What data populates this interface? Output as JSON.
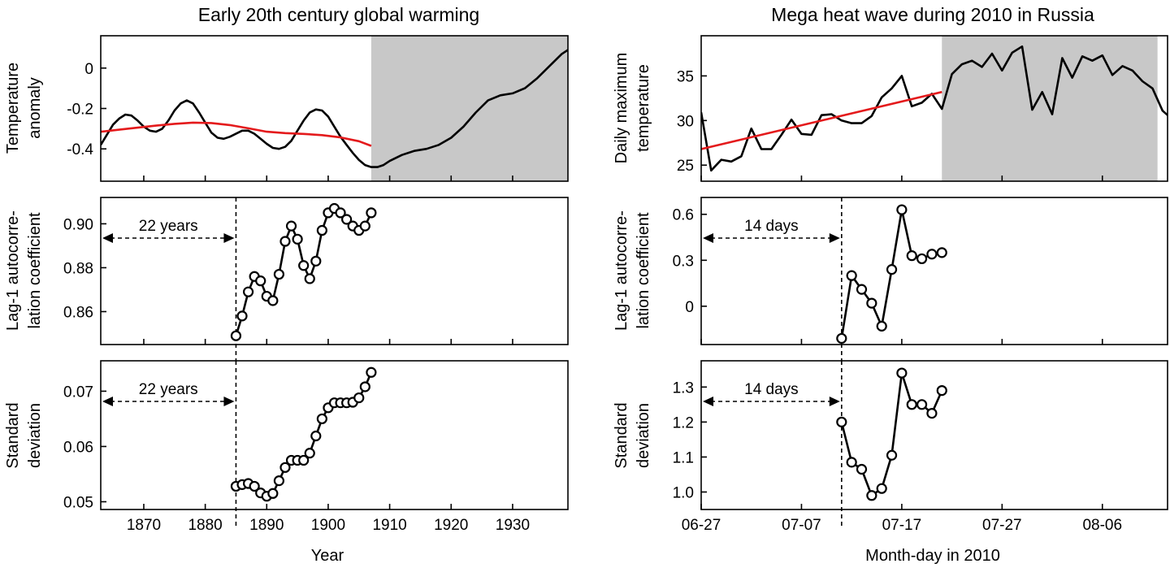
{
  "chart_data": [
    {
      "id": "lt",
      "type": "line",
      "title": "Early 20th century global warming",
      "ylabel": [
        "Temperature",
        "anomaly"
      ],
      "xlim": [
        1863,
        1939
      ],
      "ylim": [
        -0.56,
        0.16
      ],
      "yticks": [
        -0.4,
        -0.2,
        0
      ],
      "yticklabels": [
        "-0.4",
        "-0.2",
        "0"
      ],
      "xticks": [
        1870,
        1880,
        1890,
        1900,
        1910,
        1920,
        1930
      ],
      "shade": [
        1907,
        1939
      ],
      "series": [
        {
          "name": "temperature anomaly",
          "color": "#000000",
          "x": [
            1863,
            1864,
            1865,
            1866,
            1867,
            1868,
            1869,
            1870,
            1871,
            1872,
            1873,
            1874,
            1875,
            1876,
            1877,
            1878,
            1879,
            1880,
            1881,
            1882,
            1883,
            1884,
            1885,
            1886,
            1887,
            1888,
            1889,
            1890,
            1891,
            1892,
            1893,
            1894,
            1895,
            1896,
            1897,
            1898,
            1899,
            1900,
            1901,
            1902,
            1903,
            1904,
            1905,
            1906,
            1907,
            1908,
            1909,
            1910,
            1912,
            1914,
            1916,
            1918,
            1920,
            1922,
            1924,
            1926,
            1928,
            1930,
            1932,
            1934,
            1936,
            1938,
            1939
          ],
          "y": [
            -0.38,
            -0.33,
            -0.28,
            -0.25,
            -0.23,
            -0.235,
            -0.26,
            -0.29,
            -0.31,
            -0.315,
            -0.3,
            -0.26,
            -0.21,
            -0.175,
            -0.16,
            -0.175,
            -0.22,
            -0.27,
            -0.32,
            -0.345,
            -0.35,
            -0.34,
            -0.325,
            -0.31,
            -0.31,
            -0.325,
            -0.35,
            -0.375,
            -0.395,
            -0.4,
            -0.39,
            -0.36,
            -0.31,
            -0.26,
            -0.22,
            -0.205,
            -0.21,
            -0.24,
            -0.29,
            -0.34,
            -0.38,
            -0.42,
            -0.455,
            -0.48,
            -0.49,
            -0.49,
            -0.48,
            -0.46,
            -0.43,
            -0.41,
            -0.4,
            -0.38,
            -0.345,
            -0.29,
            -0.22,
            -0.16,
            -0.135,
            -0.125,
            -0.1,
            -0.05,
            0.01,
            0.07,
            0.09
          ]
        },
        {
          "name": "trend",
          "color": "#e41a1c",
          "x": [
            1863,
            1866,
            1869,
            1872,
            1875,
            1878,
            1881,
            1884,
            1887,
            1890,
            1893,
            1896,
            1899,
            1902,
            1905,
            1907
          ],
          "y": [
            -0.315,
            -0.305,
            -0.295,
            -0.285,
            -0.276,
            -0.27,
            -0.272,
            -0.282,
            -0.298,
            -0.315,
            -0.322,
            -0.326,
            -0.332,
            -0.343,
            -0.362,
            -0.385
          ]
        }
      ]
    },
    {
      "id": "lm",
      "type": "line",
      "ylabel": [
        "Lag-1 autocorre-",
        "lation coefficient"
      ],
      "xlim": [
        1863,
        1939
      ],
      "ylim": [
        0.845,
        0.912
      ],
      "yticks": [
        0.86,
        0.88,
        0.9
      ],
      "yticklabels": [
        "0.86",
        "0.88",
        "0.90"
      ],
      "xticks": [
        1870,
        1880,
        1890,
        1900,
        1910,
        1920,
        1930
      ],
      "vline": 1885,
      "annotation": "22 years",
      "series": [
        {
          "name": "lag-1 autocorrelation",
          "color": "#000000",
          "markers": true,
          "x": [
            1885,
            1886,
            1887,
            1888,
            1889,
            1890,
            1891,
            1892,
            1893,
            1894,
            1895,
            1896,
            1897,
            1898,
            1899,
            1900,
            1901,
            1902,
            1903,
            1904,
            1905,
            1906,
            1907
          ],
          "y": [
            0.849,
            0.858,
            0.869,
            0.876,
            0.874,
            0.867,
            0.865,
            0.877,
            0.892,
            0.899,
            0.893,
            0.881,
            0.875,
            0.883,
            0.897,
            0.905,
            0.907,
            0.905,
            0.902,
            0.899,
            0.897,
            0.899,
            0.905
          ]
        }
      ]
    },
    {
      "id": "lb",
      "type": "line",
      "xlabel": "Year",
      "ylabel": [
        "Standard",
        "deviation"
      ],
      "xlim": [
        1863,
        1939
      ],
      "ylim": [
        0.0486,
        0.0755
      ],
      "yticks": [
        0.05,
        0.06,
        0.07
      ],
      "yticklabels": [
        "0.05",
        "0.06",
        "0.07"
      ],
      "xticks": [
        1870,
        1880,
        1890,
        1900,
        1910,
        1920,
        1930
      ],
      "xticklabels": [
        "1870",
        "1880",
        "1890",
        "1900",
        "1910",
        "1920",
        "1930"
      ],
      "vline": 1885,
      "annotation": "22 years",
      "series": [
        {
          "name": "standard deviation",
          "color": "#000000",
          "markers": true,
          "x": [
            1885,
            1886,
            1887,
            1888,
            1889,
            1890,
            1891,
            1892,
            1893,
            1894,
            1895,
            1896,
            1897,
            1898,
            1899,
            1900,
            1901,
            1902,
            1903,
            1904,
            1905,
            1906,
            1907
          ],
          "y": [
            0.0528,
            0.0531,
            0.0533,
            0.0528,
            0.0516,
            0.051,
            0.0515,
            0.0538,
            0.0562,
            0.0575,
            0.0575,
            0.0575,
            0.0588,
            0.0619,
            0.065,
            0.067,
            0.0679,
            0.0679,
            0.0679,
            0.068,
            0.0688,
            0.0708,
            0.0734
          ]
        }
      ]
    },
    {
      "id": "rt",
      "type": "line",
      "title": "Mega heat wave during 2010 in Russia",
      "ylabel": [
        "Daily maximum",
        "temperature"
      ],
      "xlim": [
        0,
        46.5
      ],
      "ylim": [
        23.2,
        39.5
      ],
      "yticks": [
        25,
        30,
        35
      ],
      "yticklabels": [
        "25",
        "30",
        "35"
      ],
      "xticks": [
        0,
        10,
        20,
        30,
        40
      ],
      "shade": [
        24,
        45.5
      ],
      "series": [
        {
          "name": "daily maximum temperature",
          "color": "#000000",
          "x": [
            0,
            1,
            2,
            3,
            4,
            5,
            6,
            7,
            8,
            9,
            10,
            11,
            12,
            13,
            14,
            15,
            16,
            17,
            18,
            19,
            20,
            21,
            22,
            23,
            24,
            25,
            26,
            27,
            28,
            29,
            30,
            31,
            32,
            33,
            34,
            35,
            36,
            37,
            38,
            39,
            40,
            41,
            42,
            43,
            44,
            45,
            46,
            46.5
          ],
          "y": [
            30.9,
            24.4,
            25.6,
            25.4,
            26.0,
            29.1,
            26.8,
            26.8,
            28.4,
            30.1,
            28.5,
            28.4,
            30.6,
            30.7,
            30.0,
            29.7,
            29.7,
            30.5,
            32.6,
            33.6,
            35.0,
            31.6,
            32.0,
            33.0,
            31.3,
            35.2,
            36.3,
            36.7,
            36.0,
            37.5,
            35.6,
            37.6,
            38.3,
            31.2,
            33.2,
            30.7,
            37.0,
            34.8,
            37.2,
            36.7,
            37.3,
            35.1,
            36.1,
            35.6,
            34.4,
            33.6,
            31.1,
            30.6
          ]
        },
        {
          "name": "trend",
          "color": "#e41a1c",
          "x": [
            0,
            24
          ],
          "y": [
            26.8,
            33.2
          ]
        }
      ]
    },
    {
      "id": "rm",
      "type": "line",
      "ylabel": [
        "Lag-1 autocorre-",
        "lation coefficient"
      ],
      "xlim": [
        0,
        46.5
      ],
      "ylim": [
        -0.25,
        0.71
      ],
      "yticks": [
        0,
        0.3,
        0.6
      ],
      "yticklabels": [
        "0",
        "0.3",
        "0.6"
      ],
      "xticks": [
        0,
        10,
        20,
        30,
        40
      ],
      "vline": 14,
      "annotation": "14 days",
      "series": [
        {
          "name": "lag-1 autocorrelation",
          "color": "#000000",
          "markers": true,
          "x": [
            14,
            15,
            16,
            17,
            18,
            19,
            20,
            21,
            22,
            23,
            24
          ],
          "y": [
            -0.21,
            0.2,
            0.11,
            0.02,
            -0.13,
            0.24,
            0.63,
            0.33,
            0.31,
            0.34,
            0.35
          ]
        }
      ]
    },
    {
      "id": "rb",
      "type": "line",
      "xlabel": "Month-day in 2010",
      "ylabel": [
        "Standard",
        "deviation"
      ],
      "xlim": [
        0,
        46.5
      ],
      "ylim": [
        0.95,
        1.375
      ],
      "yticks": [
        1.0,
        1.1,
        1.2,
        1.3
      ],
      "yticklabels": [
        "1.0",
        "1.1",
        "1.2",
        "1.3"
      ],
      "xticks": [
        0,
        10,
        20,
        30,
        40
      ],
      "xticklabels": [
        "06-27",
        "07-07",
        "07-17",
        "07-27",
        "08-06"
      ],
      "vline": 14,
      "annotation": "14 days",
      "series": [
        {
          "name": "standard deviation",
          "color": "#000000",
          "markers": true,
          "x": [
            14,
            15,
            16,
            17,
            18,
            19,
            20,
            21,
            22,
            23,
            24
          ],
          "y": [
            1.2,
            1.085,
            1.065,
            0.99,
            1.01,
            1.105,
            1.34,
            1.25,
            1.25,
            1.225,
            1.29
          ]
        }
      ]
    }
  ]
}
